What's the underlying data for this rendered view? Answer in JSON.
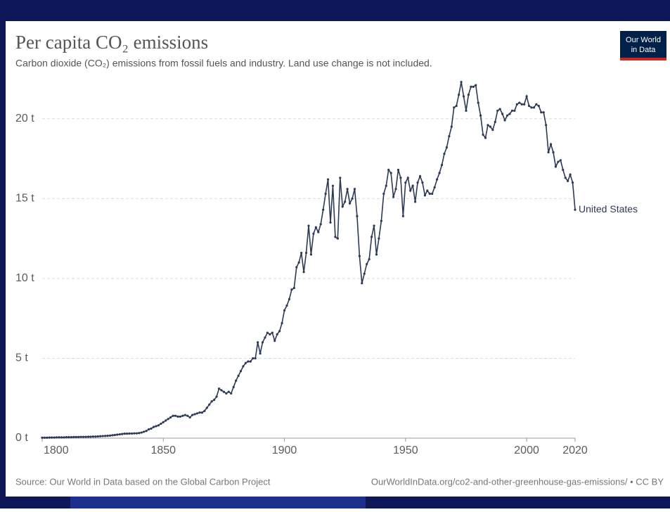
{
  "chart_data": {
    "type": "line",
    "title": "Per capita CO₂ emissions",
    "subtitle": "Carbon dioxide (CO₂) emissions from fossil fuels and industry. Land use change is not included.",
    "logo": [
      "Our World",
      "in Data"
    ],
    "source": "Source: Our World in Data based on the Global Carbon Project",
    "url": "OurWorldInData.org/co2-and-other-greenhouse-gas-emissions/ • CC BY",
    "grid": true,
    "xlim": [
      1800,
      2020
    ],
    "xticks": [
      1800,
      1850,
      1900,
      1950,
      2000,
      2020
    ],
    "ylim": [
      0,
      22.5
    ],
    "yticks": [
      {
        "value": 0,
        "label": "0 t"
      },
      {
        "value": 5,
        "label": "5 t"
      },
      {
        "value": 10,
        "label": "10 t"
      },
      {
        "value": 15,
        "label": "15 t"
      },
      {
        "value": 20,
        "label": "20 t"
      }
    ],
    "x": [
      1800,
      1801,
      1802,
      1803,
      1804,
      1805,
      1806,
      1807,
      1808,
      1809,
      1810,
      1811,
      1812,
      1813,
      1814,
      1815,
      1816,
      1817,
      1818,
      1819,
      1820,
      1821,
      1822,
      1823,
      1824,
      1825,
      1826,
      1827,
      1828,
      1829,
      1830,
      1831,
      1832,
      1833,
      1834,
      1835,
      1836,
      1837,
      1838,
      1839,
      1840,
      1841,
      1842,
      1843,
      1844,
      1845,
      1846,
      1847,
      1848,
      1849,
      1850,
      1851,
      1852,
      1853,
      1854,
      1855,
      1856,
      1857,
      1858,
      1859,
      1860,
      1861,
      1862,
      1863,
      1864,
      1865,
      1866,
      1867,
      1868,
      1869,
      1870,
      1871,
      1872,
      1873,
      1874,
      1875,
      1876,
      1877,
      1878,
      1879,
      1880,
      1881,
      1882,
      1883,
      1884,
      1885,
      1886,
      1887,
      1888,
      1889,
      1890,
      1891,
      1892,
      1893,
      1894,
      1895,
      1896,
      1897,
      1898,
      1899,
      1900,
      1901,
      1902,
      1903,
      1904,
      1905,
      1906,
      1907,
      1908,
      1909,
      1910,
      1911,
      1912,
      1913,
      1914,
      1915,
      1916,
      1917,
      1918,
      1919,
      1920,
      1921,
      1922,
      1923,
      1924,
      1925,
      1926,
      1927,
      1928,
      1929,
      1930,
      1931,
      1932,
      1933,
      1934,
      1935,
      1936,
      1937,
      1938,
      1939,
      1940,
      1941,
      1942,
      1943,
      1944,
      1945,
      1946,
      1947,
      1948,
      1949,
      1950,
      1951,
      1952,
      1953,
      1954,
      1955,
      1956,
      1957,
      1958,
      1959,
      1960,
      1961,
      1962,
      1963,
      1964,
      1965,
      1966,
      1967,
      1968,
      1969,
      1970,
      1971,
      1972,
      1973,
      1974,
      1975,
      1976,
      1977,
      1978,
      1979,
      1980,
      1981,
      1982,
      1983,
      1984,
      1985,
      1986,
      1987,
      1988,
      1989,
      1990,
      1991,
      1992,
      1993,
      1994,
      1995,
      1996,
      1997,
      1998,
      1999,
      2000,
      2001,
      2002,
      2003,
      2004,
      2005,
      2006,
      2007,
      2008,
      2009,
      2010,
      2011,
      2012,
      2013,
      2014,
      2015,
      2016,
      2017,
      2018,
      2019,
      2020
    ],
    "series": [
      {
        "name": "United States",
        "color": "#2d3a55",
        "values": [
          0.03,
          0.03,
          0.03,
          0.04,
          0.04,
          0.04,
          0.05,
          0.05,
          0.05,
          0.05,
          0.06,
          0.06,
          0.06,
          0.07,
          0.07,
          0.07,
          0.08,
          0.08,
          0.08,
          0.09,
          0.09,
          0.1,
          0.1,
          0.11,
          0.12,
          0.13,
          0.14,
          0.15,
          0.16,
          0.18,
          0.2,
          0.22,
          0.24,
          0.26,
          0.28,
          0.28,
          0.29,
          0.29,
          0.3,
          0.3,
          0.32,
          0.35,
          0.4,
          0.45,
          0.55,
          0.6,
          0.7,
          0.75,
          0.8,
          0.9,
          1.0,
          1.1,
          1.2,
          1.3,
          1.4,
          1.4,
          1.35,
          1.35,
          1.4,
          1.45,
          1.4,
          1.3,
          1.45,
          1.5,
          1.55,
          1.6,
          1.6,
          1.7,
          1.9,
          2.1,
          2.3,
          2.4,
          2.6,
          3.1,
          3.0,
          2.9,
          2.8,
          2.9,
          2.8,
          3.2,
          3.6,
          3.9,
          4.2,
          4.5,
          4.7,
          4.8,
          4.8,
          5.0,
          5.0,
          6.0,
          5.3,
          6.0,
          6.3,
          6.6,
          6.5,
          6.6,
          6.1,
          6.5,
          6.7,
          7.2,
          8.0,
          8.3,
          8.7,
          9.3,
          9.4,
          10.7,
          11.0,
          11.6,
          10.4,
          11.6,
          13.3,
          11.5,
          12.8,
          13.2,
          12.9,
          13.4,
          14.3,
          15.3,
          16.2,
          13.5,
          15.8,
          12.6,
          12.5,
          16.3,
          14.5,
          14.8,
          15.6,
          14.7,
          15.0,
          15.6,
          13.9,
          11.4,
          9.7,
          10.3,
          10.9,
          11.2,
          12.6,
          13.3,
          11.5,
          12.5,
          13.6,
          15.3,
          15.8,
          16.8,
          16.6,
          15.1,
          15.6,
          16.8,
          16.3,
          13.9,
          16.0,
          16.3,
          15.5,
          15.8,
          14.8,
          16.0,
          16.4,
          16.0,
          15.2,
          15.5,
          15.3,
          15.3,
          15.7,
          16.2,
          16.6,
          17.1,
          17.8,
          18.2,
          18.9,
          19.5,
          20.7,
          20.8,
          21.5,
          22.3,
          21.4,
          20.5,
          21.5,
          22.0,
          22.0,
          22.1,
          21.0,
          20.2,
          19.0,
          18.8,
          19.6,
          19.5,
          19.3,
          19.8,
          20.5,
          20.6,
          20.3,
          19.9,
          20.2,
          20.3,
          20.5,
          20.5,
          20.9,
          21.0,
          20.9,
          20.9,
          21.4,
          20.8,
          20.7,
          20.7,
          20.9,
          20.8,
          20.4,
          20.4,
          19.6,
          17.9,
          18.4,
          17.9,
          17.0,
          17.3,
          17.4,
          16.8,
          16.3,
          16.1,
          16.5,
          16.0,
          14.3
        ]
      }
    ]
  }
}
